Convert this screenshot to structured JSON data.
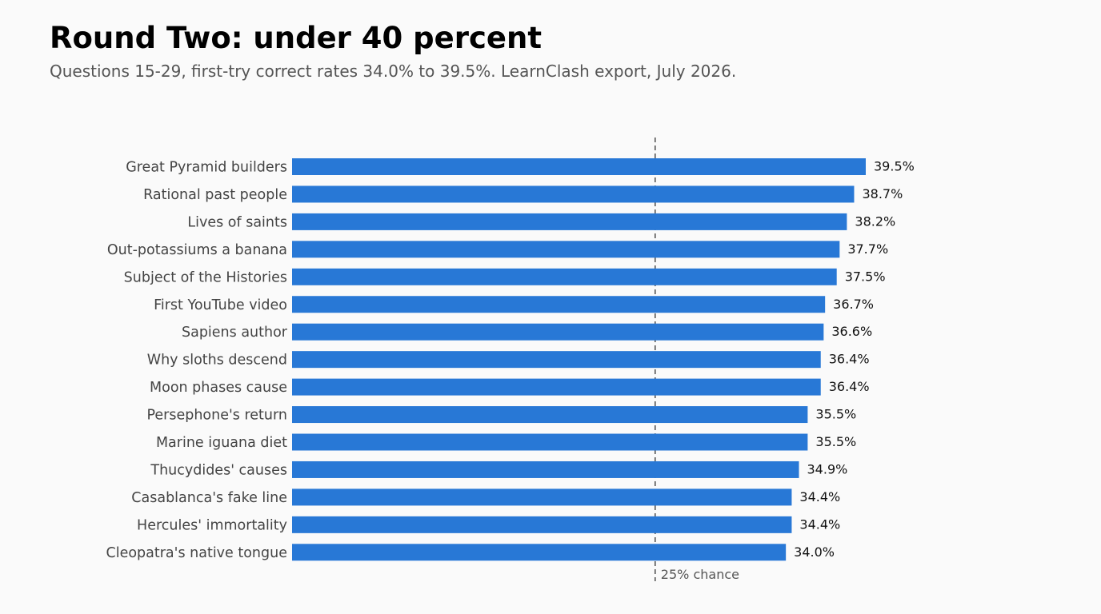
{
  "title": "Round Two: under 40 percent",
  "subtitle": "Questions 15-29, first-try correct rates 34.0% to 39.5%. LearnClash export, July 2026.",
  "colors": {
    "bar": "#2878d6",
    "reference_line": "#555555",
    "category_label": "#444444",
    "value_label": "#111111",
    "background": "#fafafa"
  },
  "chart_data": {
    "type": "bar",
    "orientation": "horizontal",
    "categories": [
      "Great Pyramid builders",
      "Rational past people",
      "Lives of saints",
      "Out-potassiums a banana",
      "Subject of the Histories",
      "First YouTube video",
      "Sapiens author",
      "Why sloths descend",
      "Moon phases cause",
      "Persephone's return",
      "Marine iguana diet",
      "Thucydides' causes",
      "Casablanca's fake line",
      "Hercules' immortality",
      "Cleopatra's native tongue"
    ],
    "values": [
      39.5,
      38.7,
      38.2,
      37.7,
      37.5,
      36.7,
      36.6,
      36.4,
      36.4,
      35.5,
      35.5,
      34.9,
      34.4,
      34.4,
      34.0
    ],
    "value_labels": [
      "39.5%",
      "38.7%",
      "38.2%",
      "37.7%",
      "37.5%",
      "36.7%",
      "36.6%",
      "36.4%",
      "36.4%",
      "35.5%",
      "35.5%",
      "34.9%",
      "34.4%",
      "34.4%",
      "34.0%"
    ],
    "xlim": [
      0,
      39.5
    ],
    "grid": false,
    "axes_visible": false,
    "reference_line": {
      "value": 25,
      "label": "25% chance",
      "style": "dashed"
    }
  }
}
